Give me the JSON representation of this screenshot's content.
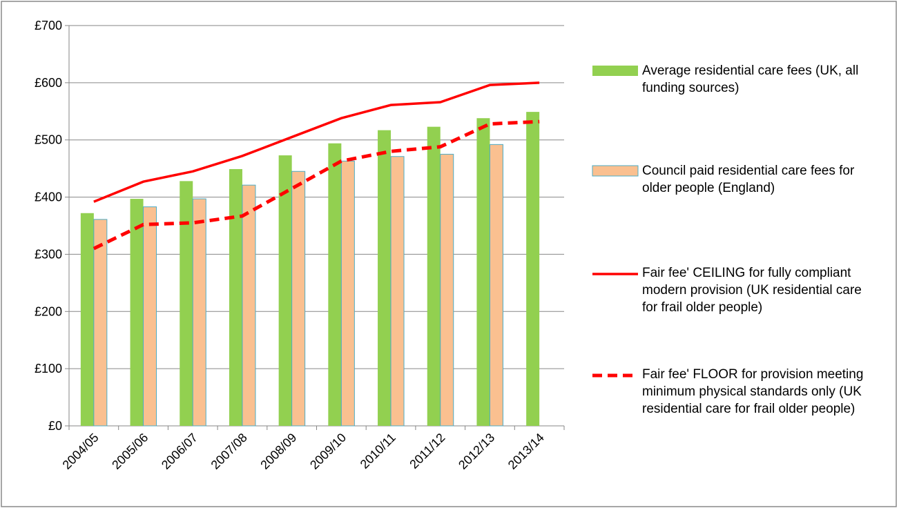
{
  "chart_data": {
    "type": "bar",
    "categories": [
      "2004/05",
      "2005/06",
      "2006/07",
      "2007/08",
      "2008/09",
      "2009/10",
      "2010/11",
      "2011/12",
      "2012/13",
      "2013/14"
    ],
    "ylim": [
      0,
      700
    ],
    "yticks": [
      {
        "value": 0,
        "label": "£0"
      },
      {
        "value": 100,
        "label": "£100"
      },
      {
        "value": 200,
        "label": "£200"
      },
      {
        "value": 300,
        "label": "£300"
      },
      {
        "value": 400,
        "label": "£400"
      },
      {
        "value": 500,
        "label": "£500"
      },
      {
        "value": 600,
        "label": "£600"
      },
      {
        "value": 700,
        "label": "£700"
      }
    ],
    "grid": true,
    "series": [
      {
        "name": "Average residential care fees (UK, all funding sources)",
        "type": "bar",
        "color": "#92d050",
        "values": [
          372,
          397,
          428,
          449,
          473,
          494,
          517,
          523,
          538,
          549
        ]
      },
      {
        "name": "Council paid residential care fees for older people (England)",
        "type": "bar",
        "color": "#fac090",
        "edge": "#4bacc6",
        "values": [
          361,
          383,
          397,
          421,
          445,
          463,
          471,
          475,
          492,
          null
        ]
      },
      {
        "name": "Fair fee' CEILING for fully compliant modern provision (UK residential care for frail older people)",
        "type": "line",
        "style": "solid",
        "color": "#ff0000",
        "values": [
          392,
          427,
          445,
          472,
          505,
          538,
          561,
          566,
          596,
          600
        ]
      },
      {
        "name": "Fair fee' FLOOR for provision meeting minimum physical standards only (UK residential care for frail older people)",
        "type": "line",
        "style": "dashed",
        "color": "#ff0000",
        "values": [
          310,
          352,
          355,
          367,
          415,
          463,
          480,
          488,
          528,
          532
        ]
      }
    ]
  }
}
